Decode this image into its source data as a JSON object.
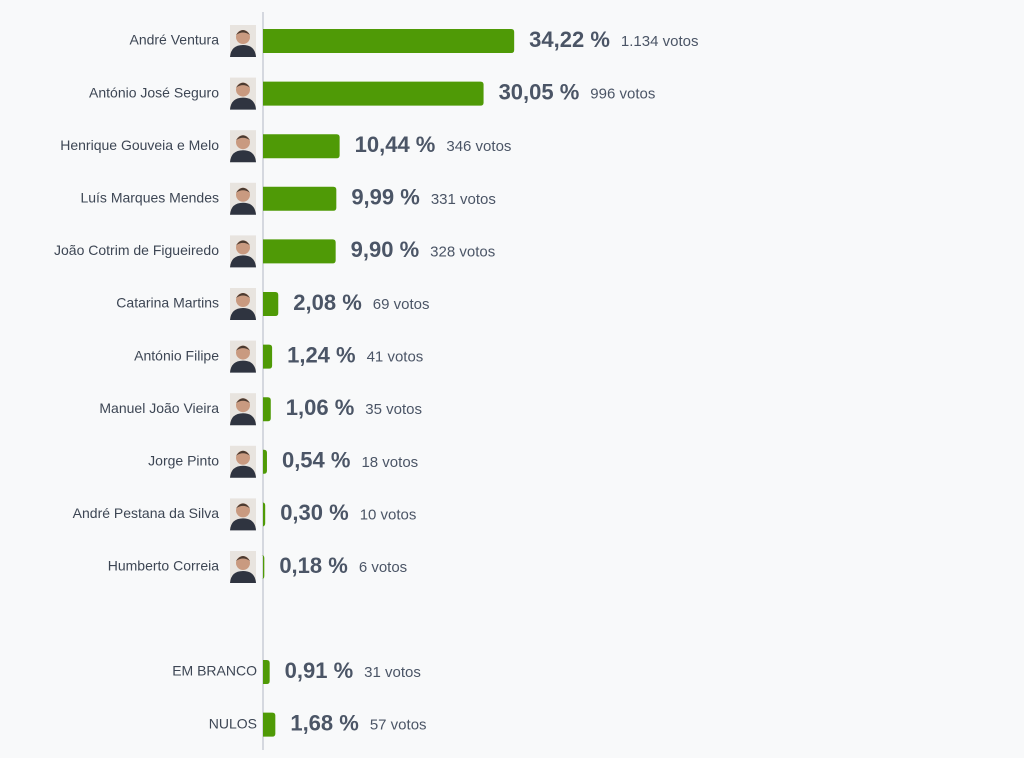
{
  "chart_data": [
    {
      "type": "bar",
      "color": "#4f9a06",
      "categories": [
        "André Ventura",
        "António José Seguro",
        "Henrique Gouveia e Melo",
        "Luís Marques Mendes",
        "João Cotrim de Figueiredo",
        "Catarina Martins",
        "António Filipe",
        "Manuel João Vieira",
        "Jorge Pinto",
        "André Pestana da Silva",
        "Humberto Correia"
      ],
      "values": [
        34.22,
        30.05,
        10.44,
        9.99,
        9.9,
        2.08,
        1.24,
        1.06,
        0.54,
        0.3,
        0.18
      ],
      "value_labels": [
        "34,22 %",
        "30,05 %",
        "10,44 %",
        "9,99 %",
        "9,90 %",
        "2,08 %",
        "1,24 %",
        "1,06 %",
        "0,54 %",
        "0,30 %",
        "0,18 %"
      ],
      "vote_labels": [
        "1.134 votos",
        "996 votos",
        "346 votos",
        "331 votos",
        "328 votos",
        "69 votos",
        "41 votos",
        "35 votos",
        "18 votos",
        "10 votos",
        "6 votos"
      ]
    },
    {
      "type": "bar",
      "color": "#4f9a06",
      "categories": [
        "EM BRANCO",
        "NULOS"
      ],
      "values": [
        0.91,
        1.68
      ],
      "value_labels": [
        "0,91 %",
        "1,68 %"
      ],
      "vote_labels": [
        "31 votos",
        "57 votos"
      ]
    }
  ]
}
